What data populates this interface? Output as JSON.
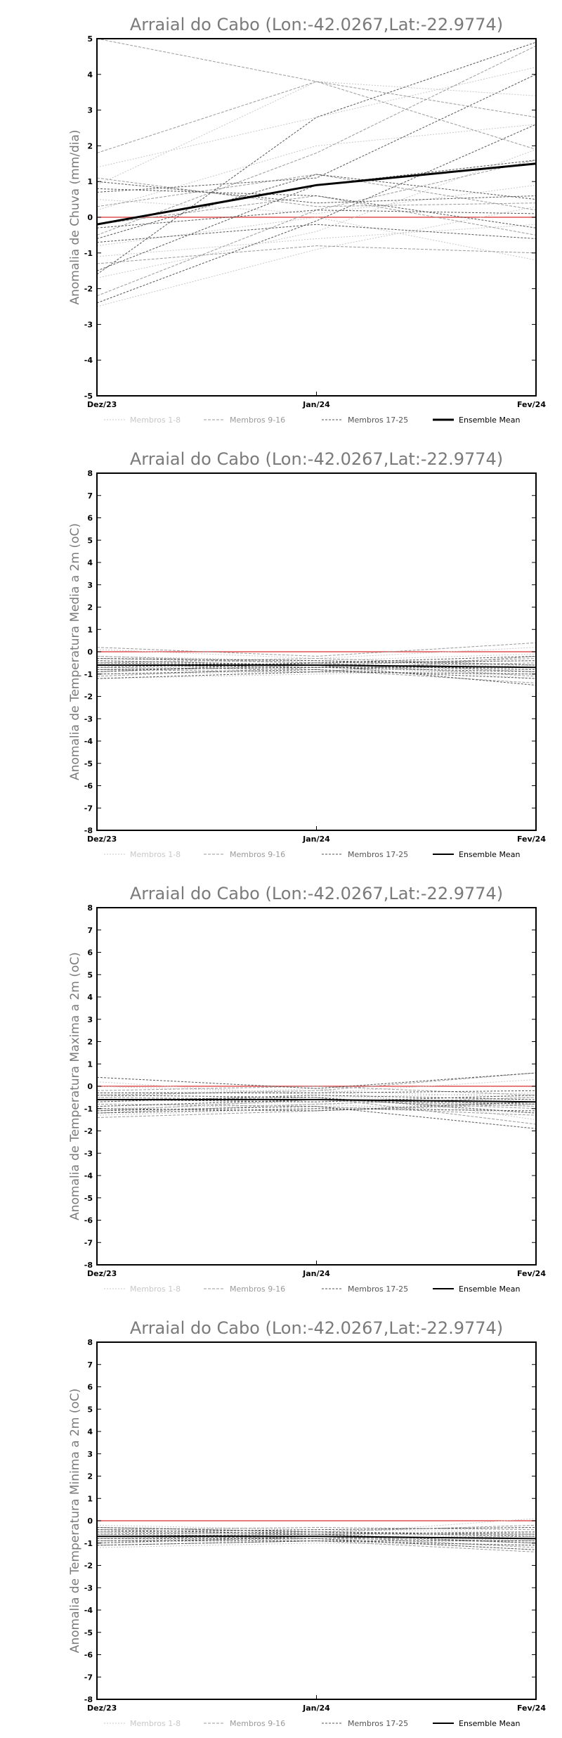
{
  "chart_data": [
    {
      "type": "line",
      "title": "Arraial do Cabo (Lon:-42.0267,Lat:-22.9774)",
      "ylabel": "Anomalia de Chuva (mm/dia)",
      "x": [
        "Dez/23",
        "Jan/24",
        "Fev/24"
      ],
      "ylim": [
        -5,
        5
      ],
      "yticks": [
        -5,
        -4,
        -3,
        -2,
        -1,
        0,
        1,
        2,
        3,
        4,
        5
      ],
      "legend": [
        "Membros 1-8",
        "Membros 9-16",
        "Membros 17-25",
        "Ensemble Mean"
      ],
      "legend_position": "bottom",
      "colors": {
        "group1": "#c8c8c8",
        "group2": "#9a9a9a",
        "group3": "#555555",
        "mean": "#000000",
        "zero": "#e05050"
      },
      "series": [
        {
          "group": 1,
          "values": [
            1.4,
            2.8,
            4.2
          ]
        },
        {
          "group": 1,
          "values": [
            -2.5,
            -0.9,
            0.3
          ]
        },
        {
          "group": 1,
          "values": [
            0.2,
            2.0,
            2.6
          ]
        },
        {
          "group": 1,
          "values": [
            -1.7,
            -0.4,
            1.9
          ]
        },
        {
          "group": 1,
          "values": [
            0.9,
            3.8,
            3.4
          ]
        },
        {
          "group": 1,
          "values": [
            -0.8,
            0.0,
            -1.2
          ]
        },
        {
          "group": 1,
          "values": [
            -1.1,
            -0.6,
            -0.2
          ]
        },
        {
          "group": 1,
          "values": [
            0.5,
            0.1,
            0.9
          ]
        },
        {
          "group": 2,
          "values": [
            1.8,
            3.8,
            1.9
          ]
        },
        {
          "group": 2,
          "values": [
            5.0,
            3.8,
            2.8
          ]
        },
        {
          "group": 2,
          "values": [
            -2.2,
            0.2,
            1.6
          ]
        },
        {
          "group": 2,
          "values": [
            -0.5,
            1.8,
            4.8
          ]
        },
        {
          "group": 2,
          "values": [
            1.1,
            0.3,
            0.4
          ]
        },
        {
          "group": 2,
          "values": [
            -1.3,
            -0.8,
            -1.0
          ]
        },
        {
          "group": 2,
          "values": [
            0.3,
            1.2,
            0.2
          ]
        },
        {
          "group": 2,
          "values": [
            -0.2,
            0.6,
            -0.5
          ]
        },
        {
          "group": 3,
          "values": [
            -2.4,
            -0.1,
            2.6
          ]
        },
        {
          "group": 3,
          "values": [
            -1.6,
            2.8,
            4.9
          ]
        },
        {
          "group": 3,
          "values": [
            0.7,
            1.1,
            4.0
          ]
        },
        {
          "group": 3,
          "values": [
            -0.6,
            1.2,
            0.5
          ]
        },
        {
          "group": 3,
          "values": [
            -1.5,
            0.9,
            1.6
          ]
        },
        {
          "group": 3,
          "values": [
            0.8,
            0.6,
            -0.3
          ]
        },
        {
          "group": 3,
          "values": [
            1.0,
            0.4,
            0.6
          ]
        },
        {
          "group": 3,
          "values": [
            -0.3,
            0.2,
            0.1
          ]
        },
        {
          "group": 3,
          "values": [
            -0.7,
            -0.2,
            -0.6
          ]
        },
        {
          "group": "mean",
          "values": [
            -0.2,
            0.9,
            1.5
          ]
        }
      ]
    },
    {
      "type": "line",
      "title": "Arraial do Cabo (Lon:-42.0267,Lat:-22.9774)",
      "ylabel": "Anomalia de Temperatura Media a 2m (oC)",
      "x": [
        "Dez/23",
        "Jan/24",
        "Fev/24"
      ],
      "ylim": [
        -8,
        8
      ],
      "yticks": [
        -8,
        -7,
        -6,
        -5,
        -4,
        -3,
        -2,
        -1,
        0,
        1,
        2,
        3,
        4,
        5,
        6,
        7,
        8
      ],
      "legend": [
        "Membros 1-8",
        "Membros 9-16",
        "Membros 17-25",
        "Ensemble Mean"
      ],
      "legend_position": "bottom",
      "colors": {
        "group1": "#c8c8c8",
        "group2": "#9a9a9a",
        "group3": "#555555",
        "mean": "#000000",
        "zero": "#e05050"
      },
      "series": [
        {
          "group": 1,
          "values": [
            -0.2,
            -0.4,
            -0.1
          ]
        },
        {
          "group": 1,
          "values": [
            -0.6,
            -0.7,
            -1.0
          ]
        },
        {
          "group": 1,
          "values": [
            -1.0,
            -0.9,
            -0.6
          ]
        },
        {
          "group": 1,
          "values": [
            0.1,
            -0.3,
            0.2
          ]
        },
        {
          "group": 1,
          "values": [
            -0.8,
            -0.5,
            -1.2
          ]
        },
        {
          "group": 1,
          "values": [
            -0.4,
            -0.6,
            -0.4
          ]
        },
        {
          "group": 1,
          "values": [
            -1.2,
            -1.0,
            -0.8
          ]
        },
        {
          "group": 1,
          "values": [
            -0.5,
            -0.4,
            -0.7
          ]
        },
        {
          "group": 2,
          "values": [
            -0.3,
            -0.5,
            -0.9
          ]
        },
        {
          "group": 2,
          "values": [
            -0.9,
            -0.6,
            -0.3
          ]
        },
        {
          "group": 2,
          "values": [
            0.2,
            -0.2,
            0.4
          ]
        },
        {
          "group": 2,
          "values": [
            -0.7,
            -0.8,
            -1.4
          ]
        },
        {
          "group": 2,
          "values": [
            -1.1,
            -0.7,
            -0.5
          ]
        },
        {
          "group": 2,
          "values": [
            -0.5,
            -0.3,
            -0.6
          ]
        },
        {
          "group": 2,
          "values": [
            -0.2,
            -0.5,
            -1.1
          ]
        },
        {
          "group": 2,
          "values": [
            -0.8,
            -0.9,
            -0.2
          ]
        },
        {
          "group": 3,
          "values": [
            -0.4,
            -0.6,
            -1.5
          ]
        },
        {
          "group": 3,
          "values": [
            -0.9,
            -0.5,
            -0.4
          ]
        },
        {
          "group": 3,
          "values": [
            -0.6,
            -0.7,
            -0.9
          ]
        },
        {
          "group": 3,
          "values": [
            -1.0,
            -0.8,
            -1.2
          ]
        },
        {
          "group": 3,
          "values": [
            -0.3,
            -0.4,
            -0.6
          ]
        },
        {
          "group": 3,
          "values": [
            -0.7,
            -0.5,
            -0.2
          ]
        },
        {
          "group": 3,
          "values": [
            -0.5,
            -0.6,
            -0.8
          ]
        },
        {
          "group": 3,
          "values": [
            -1.2,
            -0.9,
            -1.0
          ]
        },
        {
          "group": 3,
          "values": [
            -0.8,
            -0.7,
            -0.7
          ]
        },
        {
          "group": "mean",
          "values": [
            -0.6,
            -0.6,
            -0.7
          ]
        }
      ]
    },
    {
      "type": "line",
      "title": "Arraial do Cabo (Lon:-42.0267,Lat:-22.9774)",
      "ylabel": "Anomalia de Temperatura Maxima a 2m (oC)",
      "x": [
        "Dez/23",
        "Jan/24",
        "Fev/24"
      ],
      "ylim": [
        -8,
        8
      ],
      "yticks": [
        -8,
        -7,
        -6,
        -5,
        -4,
        -3,
        -2,
        -1,
        0,
        1,
        2,
        3,
        4,
        5,
        6,
        7,
        8
      ],
      "legend": [
        "Membros 1-8",
        "Membros 9-16",
        "Membros 17-25",
        "Ensemble Mean"
      ],
      "legend_position": "bottom",
      "colors": {
        "group1": "#c8c8c8",
        "group2": "#9a9a9a",
        "group3": "#555555",
        "mean": "#000000",
        "zero": "#e05050"
      },
      "series": [
        {
          "group": 1,
          "values": [
            -0.3,
            -0.2,
            -0.5
          ]
        },
        {
          "group": 1,
          "values": [
            -1.0,
            -0.8,
            -1.2
          ]
        },
        {
          "group": 1,
          "values": [
            0.2,
            -0.4,
            -0.9
          ]
        },
        {
          "group": 1,
          "values": [
            -0.7,
            -0.5,
            -0.3
          ]
        },
        {
          "group": 1,
          "values": [
            -1.3,
            -1.0,
            -0.7
          ]
        },
        {
          "group": 1,
          "values": [
            -0.5,
            -0.1,
            -1.5
          ]
        },
        {
          "group": 1,
          "values": [
            -0.9,
            -0.7,
            -0.6
          ]
        },
        {
          "group": 1,
          "values": [
            0.0,
            -0.3,
            0.3
          ]
        },
        {
          "group": 2,
          "values": [
            -1.1,
            -0.6,
            -1.0
          ]
        },
        {
          "group": 2,
          "values": [
            -0.4,
            -0.2,
            0.6
          ]
        },
        {
          "group": 2,
          "values": [
            -1.4,
            -1.1,
            -0.8
          ]
        },
        {
          "group": 2,
          "values": [
            -0.6,
            -0.5,
            -1.7
          ]
        },
        {
          "group": 2,
          "values": [
            -0.2,
            0.0,
            -0.4
          ]
        },
        {
          "group": 2,
          "values": [
            -0.8,
            -0.9,
            -1.3
          ]
        },
        {
          "group": 2,
          "values": [
            -1.2,
            -0.8,
            -0.5
          ]
        },
        {
          "group": 2,
          "values": [
            -0.5,
            -0.6,
            -0.9
          ]
        },
        {
          "group": 3,
          "values": [
            0.4,
            -0.1,
            0.6
          ]
        },
        {
          "group": 3,
          "values": [
            -1.2,
            -1.0,
            -1.1
          ]
        },
        {
          "group": 3,
          "values": [
            -0.7,
            -0.4,
            -0.6
          ]
        },
        {
          "group": 3,
          "values": [
            -1.1,
            -0.9,
            -1.9
          ]
        },
        {
          "group": 3,
          "values": [
            -0.3,
            -0.3,
            -0.2
          ]
        },
        {
          "group": 3,
          "values": [
            -0.9,
            -0.6,
            -0.8
          ]
        },
        {
          "group": 3,
          "values": [
            -0.6,
            -0.7,
            -0.4
          ]
        },
        {
          "group": 3,
          "values": [
            -0.4,
            -0.5,
            -1.2
          ]
        },
        {
          "group": 3,
          "values": [
            -1.0,
            -1.1,
            -0.7
          ]
        },
        {
          "group": "mean",
          "values": [
            -0.6,
            -0.6,
            -0.7
          ]
        }
      ]
    },
    {
      "type": "line",
      "title": "Arraial do Cabo (Lon:-42.0267,Lat:-22.9774)",
      "ylabel": "Anomalia de Temperatura Minima a 2m (oC)",
      "x": [
        "Dez/23",
        "Jan/24",
        "Fev/24"
      ],
      "ylim": [
        -8,
        8
      ],
      "yticks": [
        -8,
        -7,
        -6,
        -5,
        -4,
        -3,
        -2,
        -1,
        0,
        1,
        2,
        3,
        4,
        5,
        6,
        7,
        8
      ],
      "legend": [
        "Membros 1-8",
        "Membros 9-16",
        "Membros 17-25",
        "Ensemble Mean"
      ],
      "legend_position": "bottom",
      "colors": {
        "group1": "#c8c8c8",
        "group2": "#9a9a9a",
        "group3": "#555555",
        "mean": "#000000",
        "zero": "#e05050"
      },
      "series": [
        {
          "group": 1,
          "values": [
            -0.5,
            -0.6,
            -0.9
          ]
        },
        {
          "group": 1,
          "values": [
            -1.0,
            -0.8,
            -1.3
          ]
        },
        {
          "group": 1,
          "values": [
            -0.2,
            -0.4,
            -0.3
          ]
        },
        {
          "group": 1,
          "values": [
            -0.8,
            -0.9,
            -0.6
          ]
        },
        {
          "group": 1,
          "values": [
            -1.2,
            -1.0,
            -1.1
          ]
        },
        {
          "group": 1,
          "values": [
            -0.4,
            -0.5,
            -0.8
          ]
        },
        {
          "group": 1,
          "values": [
            -0.7,
            -0.6,
            0.1
          ]
        },
        {
          "group": 1,
          "values": [
            -0.3,
            -0.4,
            -0.5
          ]
        },
        {
          "group": 2,
          "values": [
            -0.6,
            -0.7,
            -1.0
          ]
        },
        {
          "group": 2,
          "values": [
            -0.9,
            -0.8,
            -0.7
          ]
        },
        {
          "group": 2,
          "values": [
            -0.4,
            -0.3,
            -0.4
          ]
        },
        {
          "group": 2,
          "values": [
            -1.1,
            -0.9,
            -1.4
          ]
        },
        {
          "group": 2,
          "values": [
            -0.5,
            -0.6,
            -0.6
          ]
        },
        {
          "group": 2,
          "values": [
            -0.8,
            -0.7,
            -1.2
          ]
        },
        {
          "group": 2,
          "values": [
            -0.3,
            -0.5,
            -0.2
          ]
        },
        {
          "group": 2,
          "values": [
            -0.7,
            -0.8,
            -0.9
          ]
        },
        {
          "group": 3,
          "values": [
            -0.6,
            -0.5,
            -0.7
          ]
        },
        {
          "group": 3,
          "values": [
            -0.9,
            -0.9,
            -1.1
          ]
        },
        {
          "group": 3,
          "values": [
            -0.4,
            -0.6,
            -0.5
          ]
        },
        {
          "group": 3,
          "values": [
            -1.0,
            -0.7,
            -0.8
          ]
        },
        {
          "group": 3,
          "values": [
            -0.5,
            -0.4,
            -0.3
          ]
        },
        {
          "group": 3,
          "values": [
            -0.8,
            -0.8,
            -1.3
          ]
        },
        {
          "group": 3,
          "values": [
            -0.3,
            -0.5,
            -0.6
          ]
        },
        {
          "group": 3,
          "values": [
            -0.7,
            -0.6,
            -1.0
          ]
        },
        {
          "group": 3,
          "values": [
            -1.1,
            -0.9,
            -0.9
          ]
        },
        {
          "group": "mean",
          "values": [
            -0.7,
            -0.7,
            -0.8
          ]
        }
      ]
    }
  ]
}
